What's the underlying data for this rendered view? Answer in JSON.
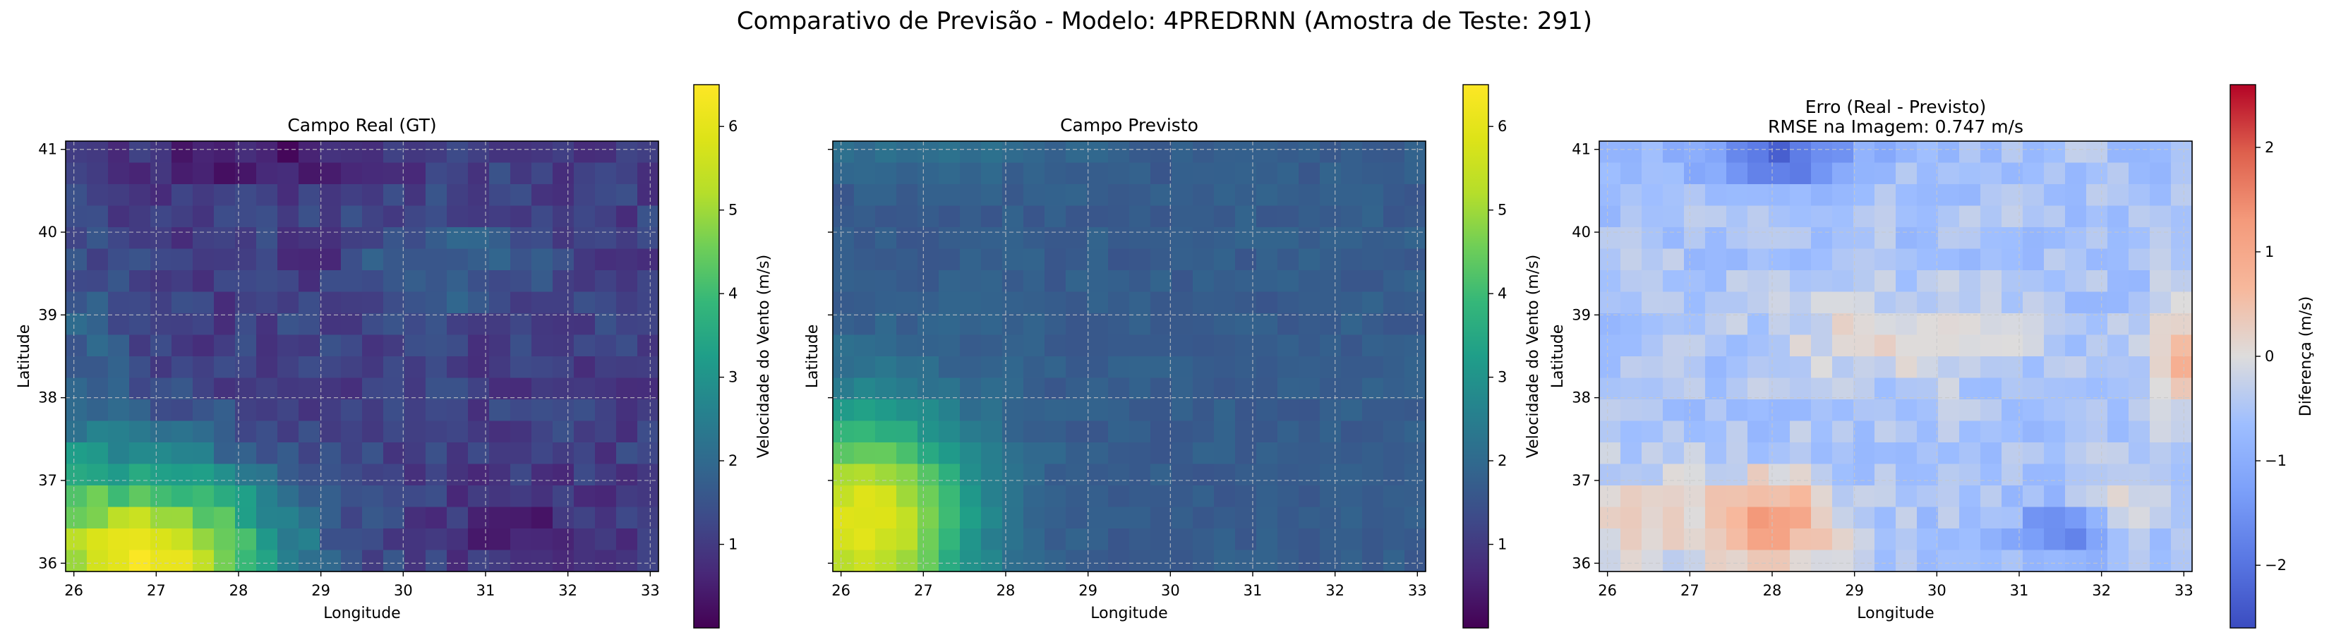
{
  "suptitle": "Comparativo de Previsão - Modelo: 4PREDRNN (Amostra de Teste: 291)",
  "chart_data": [
    {
      "type": "heatmap",
      "title": "Campo Real (GT)",
      "xlabel": "Longitude",
      "ylabel": "Latitude",
      "xlim": [
        25.9,
        33.1
      ],
      "ylim": [
        35.9,
        41.1
      ],
      "xticks": [
        "26",
        "27",
        "28",
        "29",
        "30",
        "31",
        "32",
        "33"
      ],
      "yticks": [
        "36",
        "37",
        "38",
        "39",
        "40",
        "41"
      ],
      "grid": true,
      "colormap": "viridis",
      "colorbar_label": "Velocidade do Vento (m/s)",
      "colorbar_range": [
        0.0,
        6.5
      ],
      "colorbar_ticks": [
        "1",
        "2",
        "3",
        "4",
        "5",
        "6"
      ],
      "field_summary": "Wind speed highest (about 6.3 m/s) in the south-west corner near 27.5E, 36.2N, decreasing north-eastward to about 0.5–1.5 m/s over most of the domain; minima near 27.8–28.5E, 40.8N and 29E, 39.7N"
    },
    {
      "type": "heatmap",
      "title": "Campo Previsto",
      "xlabel": "Longitude",
      "ylabel": "",
      "xlim": [
        25.9,
        33.1
      ],
      "ylim": [
        35.9,
        41.1
      ],
      "xticks": [
        "26",
        "27",
        "28",
        "29",
        "30",
        "31",
        "32",
        "33"
      ],
      "yticks": [
        "36",
        "37",
        "38",
        "39",
        "40",
        "41"
      ],
      "grid": true,
      "colormap": "viridis",
      "colorbar_label": "Velocidade do Vento (m/s)",
      "colorbar_range": [
        0.0,
        6.5
      ],
      "colorbar_ticks": [
        "1",
        "2",
        "3",
        "4",
        "5",
        "6"
      ],
      "field_summary": "Smoother field; maximum about 5.8 m/s in the south-west corner (26–27E, 36–37N), about 1.5–2.5 m/s elsewhere"
    },
    {
      "type": "heatmap",
      "title": "Erro (Real - Previsto)",
      "subtitle": "RMSE na Imagem: 0.747 m/s",
      "xlabel": "Longitude",
      "ylabel": "Latitude",
      "xlim": [
        25.9,
        33.1
      ],
      "ylim": [
        35.9,
        41.1
      ],
      "xticks": [
        "26",
        "27",
        "28",
        "29",
        "30",
        "31",
        "32",
        "33"
      ],
      "yticks": [
        "36",
        "37",
        "38",
        "39",
        "40",
        "41"
      ],
      "grid": true,
      "colormap": "coolwarm",
      "colorbar_label": "Diferença (m/s)",
      "colorbar_range": [
        -2.6,
        2.6
      ],
      "colorbar_ticks": [
        "−2",
        "−1",
        "0",
        "1",
        "2"
      ],
      "field_summary": "Mostly negative (about −0.5 to −1) in the north, strongest near 27.5–28.5E, 40.9N (about −2.3); positive errors (about +1 to +1.3) around 27.5–28.5E, 36.2–36.9N and near 33E, 38.5N; negative pocket (about −1.5 to −2) around 31.3–32E, 36.2–36.6N"
    }
  ]
}
